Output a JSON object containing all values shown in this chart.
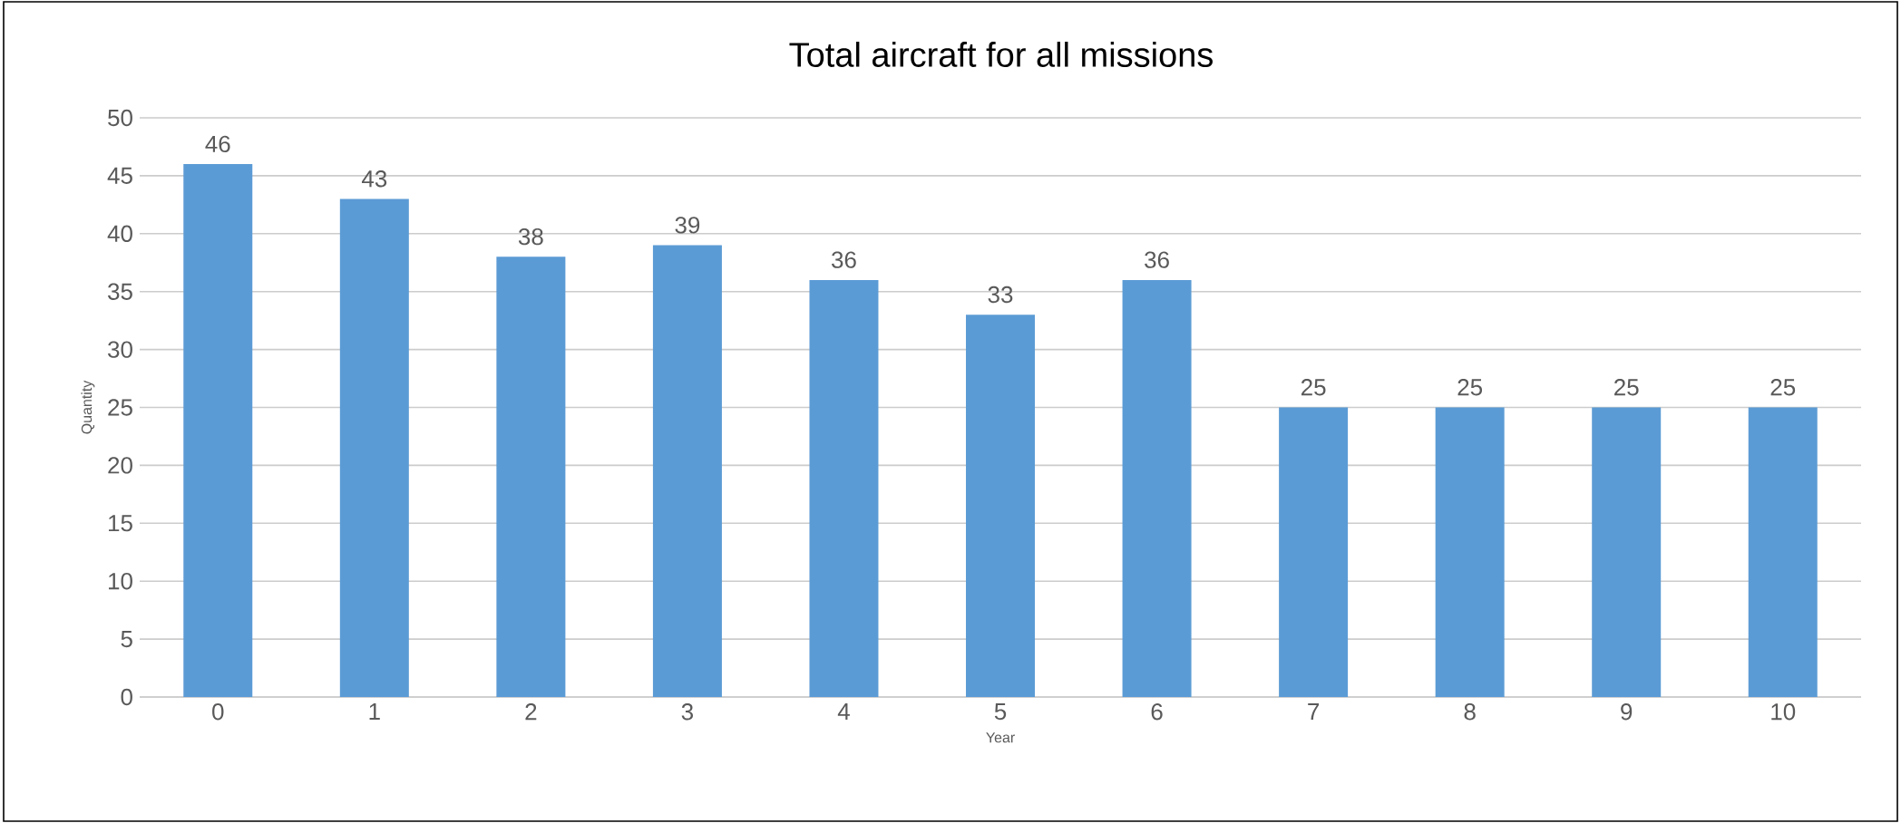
{
  "chart_data": {
    "type": "bar",
    "title": "Total aircraft for all missions",
    "xlabel": "Year",
    "ylabel": "Quantity",
    "categories": [
      "0",
      "1",
      "2",
      "3",
      "4",
      "5",
      "6",
      "7",
      "8",
      "9",
      "10"
    ],
    "values": [
      46,
      43,
      38,
      39,
      36,
      33,
      36,
      25,
      25,
      25,
      25
    ],
    "color": "#5b9bd5",
    "ylim": [
      0,
      50
    ],
    "yticks": [
      0,
      5,
      10,
      15,
      20,
      25,
      30,
      35,
      40,
      45,
      50
    ],
    "grid": "y",
    "data_labels": true
  }
}
